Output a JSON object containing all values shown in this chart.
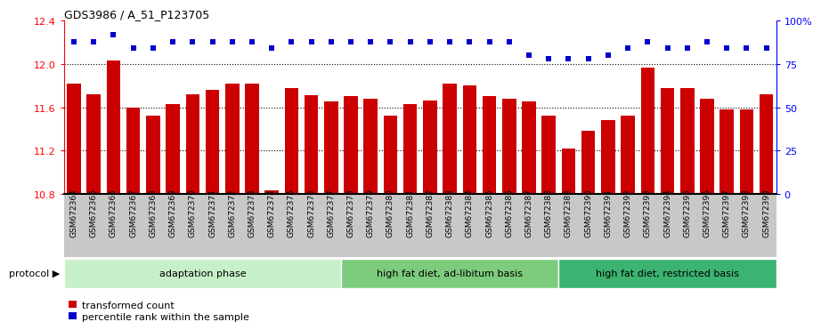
{
  "title": "GDS3986 / A_51_P123705",
  "categories": [
    "GSM672364",
    "GSM672365",
    "GSM672366",
    "GSM672367",
    "GSM672368",
    "GSM672369",
    "GSM672370",
    "GSM672371",
    "GSM672372",
    "GSM672373",
    "GSM672374",
    "GSM672375",
    "GSM672376",
    "GSM672377",
    "GSM672378",
    "GSM672379",
    "GSM672380",
    "GSM672381",
    "GSM672382",
    "GSM672383",
    "GSM672384",
    "GSM672385",
    "GSM672386",
    "GSM672387",
    "GSM672388",
    "GSM672389",
    "GSM672390",
    "GSM672391",
    "GSM672392",
    "GSM672393",
    "GSM672394",
    "GSM672395",
    "GSM672396",
    "GSM672397",
    "GSM672398",
    "GSM672399"
  ],
  "bar_values": [
    11.82,
    11.72,
    12.03,
    11.6,
    11.52,
    11.63,
    11.72,
    11.76,
    11.82,
    11.82,
    10.83,
    11.78,
    11.71,
    11.65,
    11.7,
    11.68,
    11.52,
    11.63,
    11.66,
    11.82,
    11.8,
    11.7,
    11.68,
    11.65,
    11.52,
    11.22,
    11.38,
    11.48,
    11.52,
    11.97,
    11.78,
    11.78,
    11.68,
    11.58,
    11.58,
    11.72
  ],
  "percentile_values": [
    88,
    88,
    92,
    84,
    84,
    88,
    88,
    88,
    88,
    88,
    84,
    88,
    88,
    88,
    88,
    88,
    88,
    88,
    88,
    88,
    88,
    88,
    88,
    80,
    78,
    78,
    78,
    80,
    84,
    88,
    84,
    84,
    88,
    84,
    84,
    84
  ],
  "groups": [
    {
      "label": "adaptation phase",
      "start": 0,
      "end": 14,
      "color": "#c8f0c8"
    },
    {
      "label": "high fat diet, ad-libitum basis",
      "start": 14,
      "end": 25,
      "color": "#7dcc7d"
    },
    {
      "label": "high fat diet, restricted basis",
      "start": 25,
      "end": 36,
      "color": "#3cb371"
    }
  ],
  "bar_color": "#cc0000",
  "dot_color": "#0000cc",
  "ylim_left": [
    10.8,
    12.4
  ],
  "ylim_right": [
    0,
    100
  ],
  "yticks_left": [
    10.8,
    11.2,
    11.6,
    12.0,
    12.4
  ],
  "yticks_right": [
    0,
    25,
    50,
    75,
    100
  ],
  "dotted_lines": [
    12.0,
    11.6,
    11.2
  ],
  "background_color": "#ffffff",
  "xlabel_bg_color": "#c8c8c8",
  "legend_labels": [
    "transformed count",
    "percentile rank within the sample"
  ]
}
